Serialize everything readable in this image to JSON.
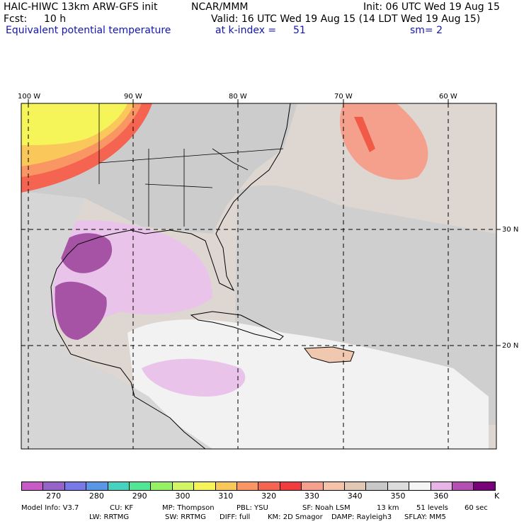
{
  "header": {
    "title": "HAIC-HIWC 13km ARW-GFS init",
    "org": "NCAR/MMM",
    "init": "Init: 06 UTC Wed 19 Aug 15",
    "fcst_label": "Fcst:",
    "fcst_value": "10 h",
    "valid": "Valid: 16 UTC Wed 19 Aug 15 (14 LDT Wed 19 Aug 15)",
    "field": "Equivalent potential temperature",
    "level": "at k-index =",
    "level_value": "51",
    "smooth": "sm= 2"
  },
  "map": {
    "lon_labels": [
      "100 W",
      "90 W",
      "80 W",
      "70 W",
      "60 W"
    ],
    "lat_labels": [
      "30 N",
      "20 N"
    ]
  },
  "colorbar": {
    "unit": "K",
    "tick_labels": [
      "270",
      "280",
      "290",
      "300",
      "310",
      "320",
      "330",
      "340",
      "350",
      "360"
    ],
    "colors": [
      "#c85ac8",
      "#9664c8",
      "#7878e6",
      "#5a96e6",
      "#46d2be",
      "#50e696",
      "#96f064",
      "#d2f564",
      "#f5f55a",
      "#fac85a",
      "#fa9664",
      "#f56450",
      "#f03c3c",
      "#f5a08c",
      "#f5c3aa",
      "#e1c8b4",
      "#c8c8c8",
      "#dcdcdc",
      "#f5f5f5",
      "#e6b4e6",
      "#b450b4",
      "#780078"
    ]
  },
  "footer": {
    "line1": [
      "Model Info: V3.7",
      "CU: KF",
      "MP: Thompson",
      "PBL: YSU",
      "SF: Noah LSM",
      "13 km",
      "51 levels",
      "60 sec"
    ],
    "line2": [
      "LW: RRTMG",
      "SW: RRTMG",
      "DIFF: full",
      "KM: 2D Smagor",
      "DAMP: Rayleigh3",
      "SFLAY: MM5"
    ]
  }
}
